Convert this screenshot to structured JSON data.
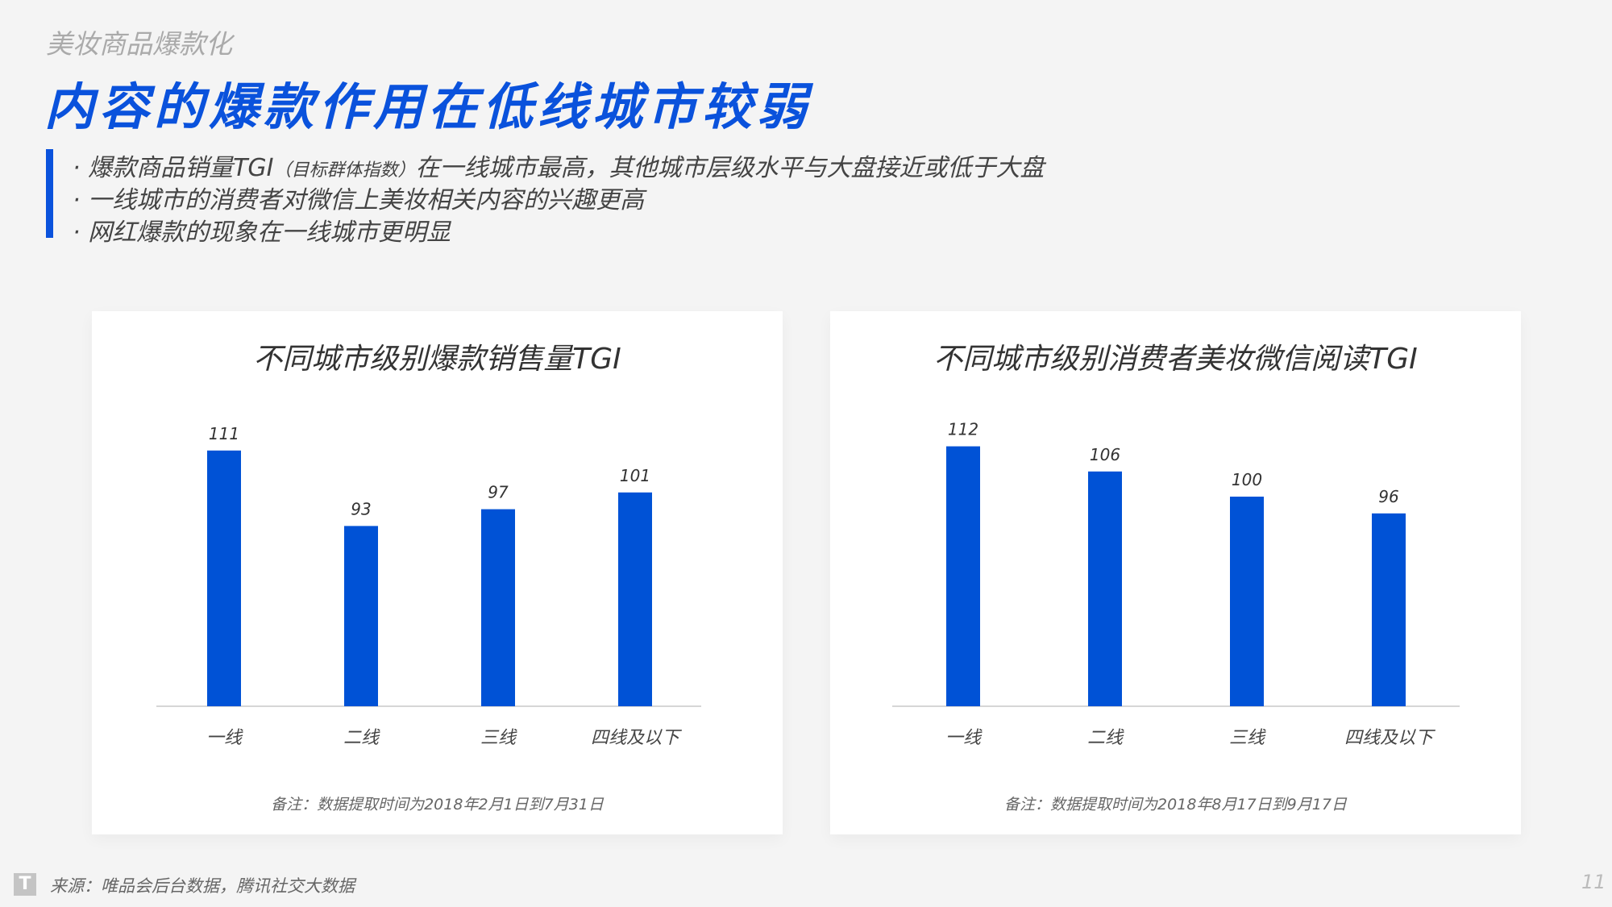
{
  "header": {
    "section": "美妆商品爆款化",
    "title": "内容的爆款作用在低线城市较弱"
  },
  "bullets": [
    {
      "pre": "· 爆款商品销量TGI",
      "small": "（目标群体指数）",
      "post": "在一线城市最高，其他城市层级水平与大盘接近或低于大盘"
    },
    {
      "pre": "· 一线城市的消费者对微信上美妆相关内容的兴趣更高",
      "small": "",
      "post": ""
    },
    {
      "pre": "· 网红爆款的现象在一线城市更明显",
      "small": "",
      "post": ""
    }
  ],
  "colors": {
    "accent": "#0a52dc",
    "bar": "#0052d6"
  },
  "chart_data": [
    {
      "type": "bar",
      "title": "不同城市级别爆款销售量TGI",
      "categories": [
        "一线",
        "二线",
        "三线",
        "四线及以下"
      ],
      "values": [
        111,
        93,
        97,
        101
      ],
      "ylim": [
        50,
        120
      ],
      "grid": false,
      "note": "备注：数据提取时间为2018年2月1日到7月31日"
    },
    {
      "type": "bar",
      "title": "不同城市级别消费者美妆微信阅读TGI",
      "categories": [
        "一线",
        "二线",
        "三线",
        "四线及以下"
      ],
      "values": [
        112,
        106,
        100,
        96
      ],
      "ylim": [
        50,
        120
      ],
      "grid": false,
      "note": "备注：数据提取时间为2018年8月17日到9月17日"
    }
  ],
  "footer": {
    "logo": "T",
    "source": "来源：唯品会后台数据，腾讯社交大数据",
    "page": "11"
  }
}
